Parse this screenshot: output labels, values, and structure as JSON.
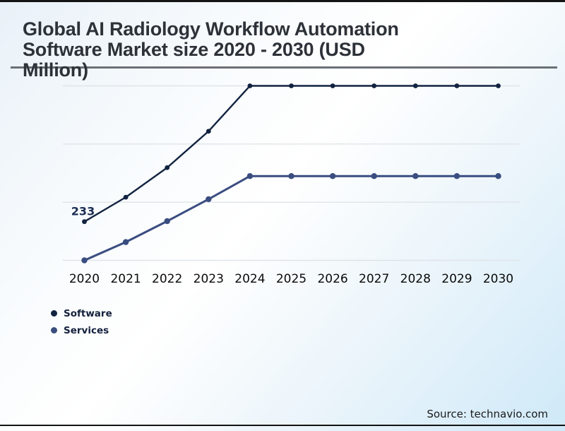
{
  "header": {
    "title": "Global AI Radiology Workflow Automation Software Market size 2020 - 2030 (USD Million)",
    "title_lines": [
      "Global AI Radiology Workflow Automation",
      "Software Market size 2020 - 2030 (USD",
      "Million)"
    ]
  },
  "chart_data": {
    "type": "line",
    "title": "Global AI Radiology Workflow Automation Software Market size 2020 - 2030 (USD Million)",
    "categories": [
      "2020",
      "2021",
      "2022",
      "2023",
      "2024",
      "2025",
      "2026",
      "2027",
      "2028",
      "2029",
      "2030"
    ],
    "series": [
      {
        "name": "Software",
        "color": "#122340",
        "values": [
          233,
          380,
          558,
          777,
          1050,
          1050,
          1050,
          1050,
          1050,
          1050,
          1050
        ]
      },
      {
        "name": "Services",
        "color": "#3a4d80",
        "values": [
          0,
          110,
          236,
          368,
          507,
          507,
          507,
          507,
          507,
          507,
          507
        ]
      }
    ],
    "data_labels": [
      {
        "series": "Software",
        "category": "2020",
        "text": "233"
      }
    ],
    "xlabel": "",
    "ylabel": "",
    "ylim": [
      0,
      1050
    ],
    "gridline_values": [
      0,
      350,
      700,
      1050
    ],
    "y_tick_labels_visible": false,
    "grid": "horizontal",
    "legend_position": "lower-left"
  },
  "footer": {
    "source": "Source: technavio.com"
  },
  "colors": {
    "grid": "#e0e4e8",
    "divider": "#6b7077",
    "border": "#141414",
    "annotation": "#1b2d55",
    "title_text": "#2d3138",
    "background_top": "#e9f1f8",
    "background_bottom": "#cfe9f8"
  }
}
